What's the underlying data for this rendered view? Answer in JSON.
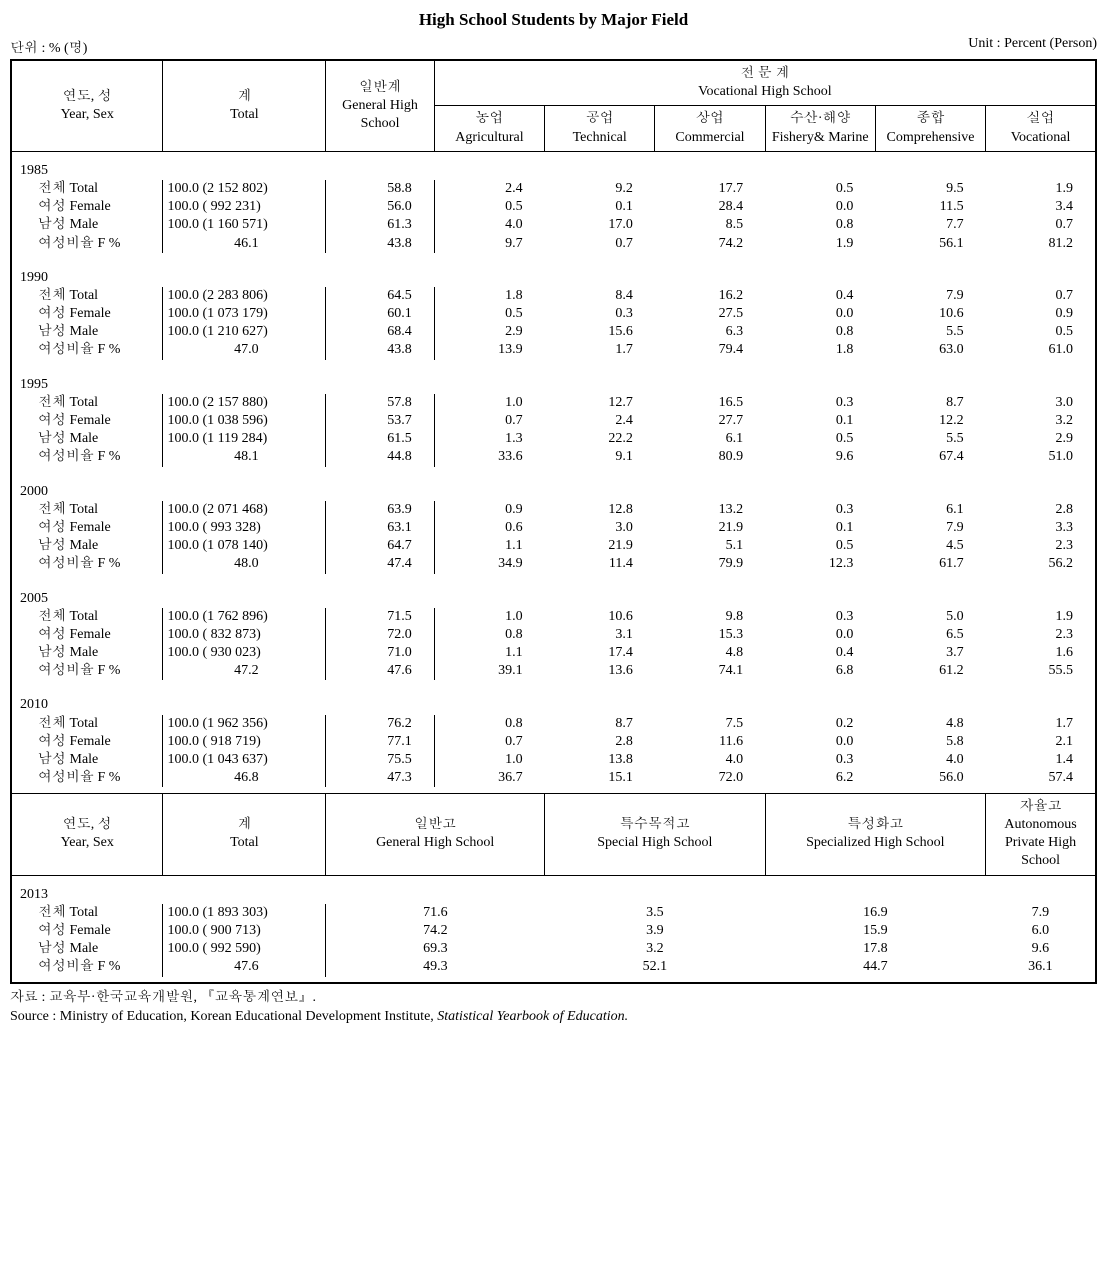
{
  "title": "High School Students by Major Field",
  "unit_left": "단위 : % (명)",
  "unit_right": "Unit : Percent (Person)",
  "headers_a": {
    "year_sex_kr": "연도, 성",
    "year_sex_en": "Year, Sex",
    "total_kr": "계",
    "total_en": "Total",
    "general_kr": "일반계",
    "general_en": "General High School",
    "voc_group_kr": "전 문 계",
    "voc_group_en": "Vocational High School",
    "agri_kr": "농업",
    "agri_en": "Agricultural",
    "tech_kr": "공업",
    "tech_en": "Technical",
    "comm_kr": "상업",
    "comm_en": "Commercial",
    "fish_kr": "수산·해양",
    "fish_en": "Fishery& Marine",
    "comp_kr": "종합",
    "comp_en": "Comprehensive",
    "vocl_kr": "실업",
    "vocl_en": "Vocational"
  },
  "headers_b": {
    "year_sex_kr": "연도, 성",
    "year_sex_en": "Year, Sex",
    "total_kr": "계",
    "total_en": "Total",
    "general_kr": "일반고",
    "general_en": "General High School",
    "special_kr": "특수목적고",
    "special_en": "Special High School",
    "spec_kr": "특성화고",
    "spec_en": "Specialized High School",
    "auto_kr": "자율고",
    "auto_en": "Autonomous Private High School"
  },
  "row_labels": {
    "total": "전체 Total",
    "female": "여성 Female",
    "male": "남성 Male",
    "f_ratio": "여성비율 F %"
  },
  "years_a": [
    {
      "year": "1985",
      "rows": [
        {
          "label": "total",
          "total": "100.0 (2 152 802)",
          "v": [
            "58.8",
            "2.4",
            "9.2",
            "17.7",
            "0.5",
            "9.5",
            "1.9"
          ]
        },
        {
          "label": "female",
          "total": "100.0 (  992 231)",
          "v": [
            "56.0",
            "0.5",
            "0.1",
            "28.4",
            "0.0",
            "11.5",
            "3.4"
          ]
        },
        {
          "label": "male",
          "total": "100.0 (1 160 571)",
          "v": [
            "61.3",
            "4.0",
            "17.0",
            "8.5",
            "0.8",
            "7.7",
            "0.7"
          ]
        },
        {
          "label": "f_ratio",
          "total": "46.1",
          "v": [
            "43.8",
            "9.7",
            "0.7",
            "74.2",
            "1.9",
            "56.1",
            "81.2"
          ]
        }
      ]
    },
    {
      "year": "1990",
      "rows": [
        {
          "label": "total",
          "total": "100.0 (2 283 806)",
          "v": [
            "64.5",
            "1.8",
            "8.4",
            "16.2",
            "0.4",
            "7.9",
            "0.7"
          ]
        },
        {
          "label": "female",
          "total": "100.0 (1 073 179)",
          "v": [
            "60.1",
            "0.5",
            "0.3",
            "27.5",
            "0.0",
            "10.6",
            "0.9"
          ]
        },
        {
          "label": "male",
          "total": "100.0 (1 210 627)",
          "v": [
            "68.4",
            "2.9",
            "15.6",
            "6.3",
            "0.8",
            "5.5",
            "0.5"
          ]
        },
        {
          "label": "f_ratio",
          "total": "47.0",
          "v": [
            "43.8",
            "13.9",
            "1.7",
            "79.4",
            "1.8",
            "63.0",
            "61.0"
          ]
        }
      ]
    },
    {
      "year": "1995",
      "rows": [
        {
          "label": "total",
          "total": "100.0 (2 157 880)",
          "v": [
            "57.8",
            "1.0",
            "12.7",
            "16.5",
            "0.3",
            "8.7",
            "3.0"
          ]
        },
        {
          "label": "female",
          "total": "100.0 (1 038 596)",
          "v": [
            "53.7",
            "0.7",
            "2.4",
            "27.7",
            "0.1",
            "12.2",
            "3.2"
          ]
        },
        {
          "label": "male",
          "total": "100.0 (1 119 284)",
          "v": [
            "61.5",
            "1.3",
            "22.2",
            "6.1",
            "0.5",
            "5.5",
            "2.9"
          ]
        },
        {
          "label": "f_ratio",
          "total": "48.1",
          "v": [
            "44.8",
            "33.6",
            "9.1",
            "80.9",
            "9.6",
            "67.4",
            "51.0"
          ]
        }
      ]
    },
    {
      "year": "2000",
      "rows": [
        {
          "label": "total",
          "total": "100.0 (2 071 468)",
          "v": [
            "63.9",
            "0.9",
            "12.8",
            "13.2",
            "0.3",
            "6.1",
            "2.8"
          ]
        },
        {
          "label": "female",
          "total": "100.0 (  993 328)",
          "v": [
            "63.1",
            "0.6",
            "3.0",
            "21.9",
            "0.1",
            "7.9",
            "3.3"
          ]
        },
        {
          "label": "male",
          "total": "100.0 (1 078 140)",
          "v": [
            "64.7",
            "1.1",
            "21.9",
            "5.1",
            "0.5",
            "4.5",
            "2.3"
          ]
        },
        {
          "label": "f_ratio",
          "total": "48.0",
          "v": [
            "47.4",
            "34.9",
            "11.4",
            "79.9",
            "12.3",
            "61.7",
            "56.2"
          ]
        }
      ]
    },
    {
      "year": "2005",
      "rows": [
        {
          "label": "total",
          "total": "100.0 (1 762 896)",
          "v": [
            "71.5",
            "1.0",
            "10.6",
            "9.8",
            "0.3",
            "5.0",
            "1.9"
          ]
        },
        {
          "label": "female",
          "total": "100.0 (  832 873)",
          "v": [
            "72.0",
            "0.8",
            "3.1",
            "15.3",
            "0.0",
            "6.5",
            "2.3"
          ]
        },
        {
          "label": "male",
          "total": "100.0 (  930 023)",
          "v": [
            "71.0",
            "1.1",
            "17.4",
            "4.8",
            "0.4",
            "3.7",
            "1.6"
          ]
        },
        {
          "label": "f_ratio",
          "total": "47.2",
          "v": [
            "47.6",
            "39.1",
            "13.6",
            "74.1",
            "6.8",
            "61.2",
            "55.5"
          ]
        }
      ]
    },
    {
      "year": "2010",
      "rows": [
        {
          "label": "total",
          "total": "100.0 (1 962 356)",
          "v": [
            "76.2",
            "0.8",
            "8.7",
            "7.5",
            "0.2",
            "4.8",
            "1.7"
          ]
        },
        {
          "label": "female",
          "total": "100.0 (  918 719)",
          "v": [
            "77.1",
            "0.7",
            "2.8",
            "11.6",
            "0.0",
            "5.8",
            "2.1"
          ]
        },
        {
          "label": "male",
          "total": "100.0 (1 043 637)",
          "v": [
            "75.5",
            "1.0",
            "13.8",
            "4.0",
            "0.3",
            "4.0",
            "1.4"
          ]
        },
        {
          "label": "f_ratio",
          "total": "46.8",
          "v": [
            "47.3",
            "36.7",
            "15.1",
            "72.0",
            "6.2",
            "56.0",
            "57.4"
          ]
        }
      ]
    }
  ],
  "years_b": [
    {
      "year": "2013",
      "rows": [
        {
          "label": "total",
          "total": "100.0 (1 893 303)",
          "v": [
            "71.6",
            "3.5",
            "16.9",
            "7.9"
          ]
        },
        {
          "label": "female",
          "total": "100.0 (  900 713)",
          "v": [
            "74.2",
            "3.9",
            "15.9",
            "6.0"
          ]
        },
        {
          "label": "male",
          "total": "100.0 (  992 590)",
          "v": [
            "69.3",
            "3.2",
            "17.8",
            "9.6"
          ]
        },
        {
          "label": "f_ratio",
          "total": "47.6",
          "v": [
            "49.3",
            "52.1",
            "44.7",
            "36.1"
          ]
        }
      ]
    }
  ],
  "footer": {
    "line1_label": "자료   :",
    "line1_text": "  교육부·한국교육개발원, 『교육통계연보』.",
    "line2_label": "Source :",
    "line2_text": "  Ministry of Education, Korean Educational Development Institute, ",
    "line2_ital": "Statistical Yearbook of Education."
  },
  "style": {
    "background_color": "#ffffff",
    "text_color": "#000000",
    "border_color": "#000000",
    "title_fontsize": 17,
    "body_fontsize": 14
  }
}
